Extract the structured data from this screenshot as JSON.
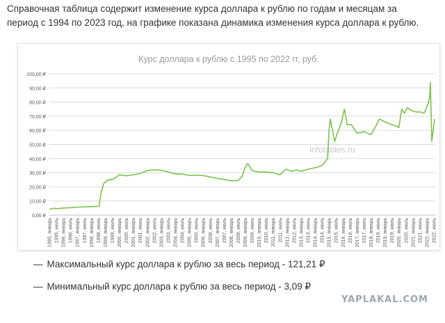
{
  "intro_text": "Справочная таблица содержит изменение курса доллара к рублю по годам и месяцам за период с 1994 по 2023 год, на графике показана динамика изменения курса доллара к рублю.",
  "chart_watermark": "infotables.ru",
  "stats": [
    {
      "dash": "—",
      "text": "Максимальный курс доллара к рублю за весь период - 121,21 ₽"
    },
    {
      "dash": "—",
      "text": "Минимальный курс доллара к рублю за весь период - 3,09 ₽"
    }
  ],
  "site_watermark": "YAPLAKAL.COM",
  "colors": {
    "line": "#7cc24a",
    "grid": "#d9d9d9",
    "title": "#9a9a9a"
  },
  "chart_data": {
    "type": "line",
    "title": "Курс доллара к рублю с 1995 по 2022 гг, руб.",
    "ylim": [
      0,
      100
    ],
    "yticks": [
      "0,00 ₽",
      "10,00 ₽",
      "20,00 ₽",
      "30,00 ₽",
      "40,00 ₽",
      "50,00 ₽",
      "60,00 ₽",
      "70,00 ₽",
      "80,00 ₽",
      "90,00 ₽",
      "100,00 ₽"
    ],
    "xlim": [
      1995,
      2022.6
    ],
    "xticks": [
      {
        "x": 1995.0,
        "label": "1995, январь"
      },
      {
        "x": 1995.5,
        "label": "1995, июль"
      },
      {
        "x": 1996.0,
        "label": "1996, январь"
      },
      {
        "x": 1996.5,
        "label": "1996, июль"
      },
      {
        "x": 1997.0,
        "label": "1997, январь"
      },
      {
        "x": 1997.5,
        "label": "1997, июль"
      },
      {
        "x": 1998.0,
        "label": "1998, январь"
      },
      {
        "x": 1998.5,
        "label": "1998, июль"
      },
      {
        "x": 1999.0,
        "label": "1999, январь"
      },
      {
        "x": 1999.5,
        "label": "1999, июль"
      },
      {
        "x": 2000.0,
        "label": "2000, январь"
      },
      {
        "x": 2000.5,
        "label": "2000, июль"
      },
      {
        "x": 2001.0,
        "label": "2001, январь"
      },
      {
        "x": 2001.5,
        "label": "2001, июль"
      },
      {
        "x": 2002.0,
        "label": "2002, январь"
      },
      {
        "x": 2002.5,
        "label": "2002, июль"
      },
      {
        "x": 2003.0,
        "label": "2003, январь"
      },
      {
        "x": 2003.5,
        "label": "2003, июль"
      },
      {
        "x": 2004.0,
        "label": "2004, январь"
      },
      {
        "x": 2004.5,
        "label": "2004, июль"
      },
      {
        "x": 2005.0,
        "label": "2005, январь"
      },
      {
        "x": 2005.5,
        "label": "2005, июль"
      },
      {
        "x": 2006.0,
        "label": "2006, январь"
      },
      {
        "x": 2006.5,
        "label": "2006, июль"
      },
      {
        "x": 2007.0,
        "label": "2007, январь"
      },
      {
        "x": 2007.5,
        "label": "2007, июль"
      },
      {
        "x": 2008.0,
        "label": "2008, январь"
      },
      {
        "x": 2008.5,
        "label": "2008, июль"
      },
      {
        "x": 2009.0,
        "label": "2009, январь"
      },
      {
        "x": 2009.5,
        "label": "2009, июль"
      },
      {
        "x": 2010.0,
        "label": "2010, январь"
      },
      {
        "x": 2010.5,
        "label": "2010, июль"
      },
      {
        "x": 2011.0,
        "label": "2011, январь"
      },
      {
        "x": 2011.5,
        "label": "2011, июль"
      },
      {
        "x": 2012.0,
        "label": "2012, январь"
      },
      {
        "x": 2012.5,
        "label": "2012, июль"
      },
      {
        "x": 2013.0,
        "label": "2013, январь"
      },
      {
        "x": 2013.5,
        "label": "2013, июль"
      },
      {
        "x": 2014.0,
        "label": "2014, январь"
      },
      {
        "x": 2014.5,
        "label": "2014, июль"
      },
      {
        "x": 2015.0,
        "label": "2015, январь"
      },
      {
        "x": 2015.5,
        "label": "2015, июль"
      },
      {
        "x": 2016.0,
        "label": "2016, январь"
      },
      {
        "x": 2016.5,
        "label": "2016, июль"
      },
      {
        "x": 2017.0,
        "label": "2017, январь"
      },
      {
        "x": 2017.5,
        "label": "2017, июль"
      },
      {
        "x": 2018.0,
        "label": "2018, январь"
      },
      {
        "x": 2018.5,
        "label": "2018, июль"
      },
      {
        "x": 2019.0,
        "label": "2019, январь"
      },
      {
        "x": 2019.5,
        "label": "2019, июль"
      },
      {
        "x": 2020.0,
        "label": "2020, январь"
      },
      {
        "x": 2020.5,
        "label": "2020, июль"
      },
      {
        "x": 2021.0,
        "label": "2021, январь"
      },
      {
        "x": 2021.5,
        "label": "2021, июль"
      },
      {
        "x": 2022.0,
        "label": "2022, январь"
      },
      {
        "x": 2022.5,
        "label": "2022, июль"
      }
    ],
    "grid": true,
    "legend": "none",
    "series": [
      {
        "x": [
          1995.0,
          1995.3,
          1995.6,
          1996.0,
          1996.5,
          1997.0,
          1997.5,
          1998.0,
          1998.55,
          1998.7,
          1998.9,
          1999.2,
          1999.6,
          2000.0,
          2000.5,
          2001.0,
          2001.5,
          2002.0,
          2002.5,
          2003.0,
          2003.5,
          2004.0,
          2004.5,
          2005.0,
          2005.5,
          2006.0,
          2006.5,
          2007.0,
          2007.5,
          2008.0,
          2008.5,
          2008.8,
          2009.0,
          2009.2,
          2009.5,
          2010.0,
          2010.5,
          2011.0,
          2011.5,
          2011.9,
          2012.3,
          2012.7,
          2013.0,
          2013.5,
          2014.0,
          2014.5,
          2014.9,
          2015.0,
          2015.1,
          2015.4,
          2015.6,
          2015.9,
          2016.1,
          2016.3,
          2016.6,
          2017.0,
          2017.5,
          2018.0,
          2018.3,
          2018.6,
          2019.0,
          2019.5,
          2019.8,
          2020.0,
          2020.2,
          2020.4,
          2020.6,
          2020.9,
          2021.2,
          2021.5,
          2021.8,
          2022.1,
          2022.2,
          2022.25,
          2022.35,
          2022.45,
          2022.55
        ],
        "y": [
          4.0,
          4.9,
          4.5,
          5.0,
          5.2,
          5.6,
          5.8,
          6.0,
          6.2,
          16.0,
          22.5,
          24.8,
          25.5,
          28.5,
          27.8,
          28.5,
          29.5,
          31.5,
          32.0,
          31.8,
          30.5,
          29.2,
          29.0,
          28.2,
          28.3,
          28.0,
          27.0,
          26.0,
          25.2,
          24.3,
          24.5,
          27.5,
          34.0,
          36.5,
          31.5,
          30.5,
          30.5,
          30.0,
          28.5,
          32.5,
          31.0,
          32.0,
          31.0,
          32.5,
          33.5,
          35.0,
          40.0,
          60.0,
          68.0,
          52.0,
          58.0,
          66.0,
          75.0,
          64.0,
          64.0,
          58.0,
          59.0,
          57.0,
          62.0,
          68.0,
          66.0,
          64.0,
          63.0,
          62.0,
          75.0,
          72.0,
          76.0,
          74.0,
          73.0,
          73.0,
          72.0,
          79.0,
          84.0,
          94.0,
          52.0,
          60.0,
          68.0
        ]
      }
    ]
  }
}
